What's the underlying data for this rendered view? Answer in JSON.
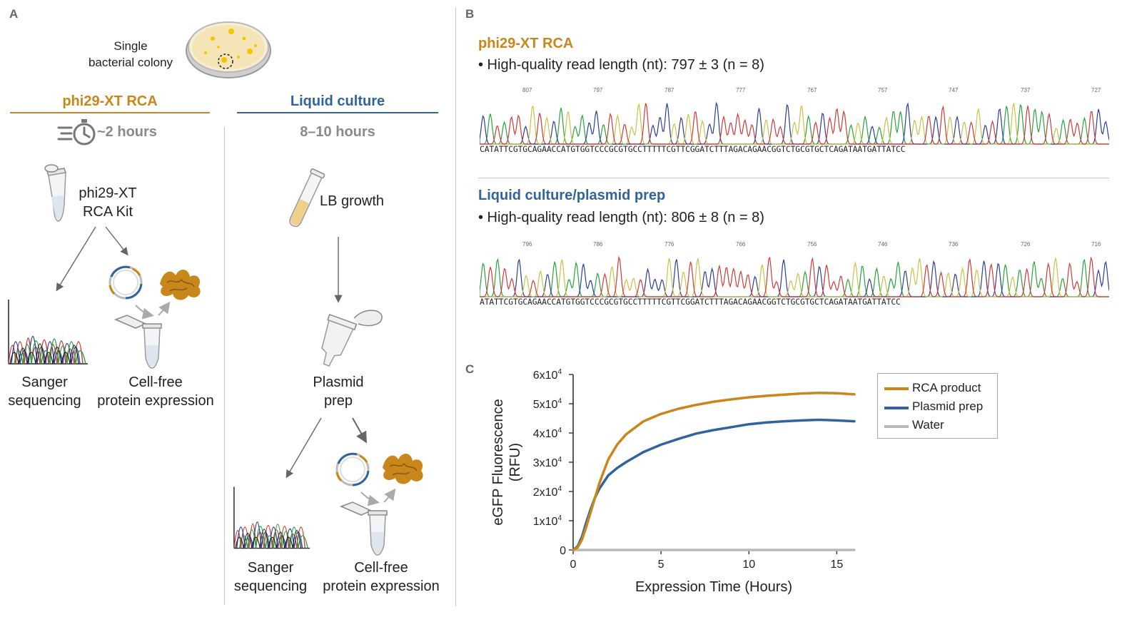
{
  "panelA": {
    "letter": "A",
    "colony_label_line1": "Single",
    "colony_label_line2": "bacterial colony",
    "left": {
      "title": "phi29-XT RCA",
      "time": "~2 hours",
      "kit_line1": "phi29-XT",
      "kit_line2": "RCA Kit",
      "seq_line1": "Sanger",
      "seq_line2": "sequencing",
      "cfpe_line1": "Cell-free",
      "cfpe_line2": "protein expression"
    },
    "right": {
      "title": "Liquid culture",
      "time": "8–10 hours",
      "growth": "LB growth",
      "prep_line1": "Plasmid",
      "prep_line2": "prep",
      "seq_line1": "Sanger",
      "seq_line2": "sequencing",
      "cfpe_line1": "Cell-free",
      "cfpe_line2": "protein expression"
    }
  },
  "panelB": {
    "letter": "B",
    "rca": {
      "title": "phi29-XT RCA",
      "stat": "• High-quality read length (nt): 797 ± 3 (n = 8)",
      "ticks": [
        "807",
        "797",
        "787",
        "777",
        "767",
        "757",
        "747",
        "737",
        "727"
      ],
      "sequence": "CATATTCGTGCAGAACCATGTGGTCCCGCGTGCCTTTTTCGTTCGGATCTTTAGACAGAACGGTCTGCGTGCTCAGATAATGATTATCC"
    },
    "plasmid": {
      "title": "Liquid culture/plasmid prep",
      "stat": "• High-quality read length (nt): 806 ± 8 (n = 8)",
      "ticks": [
        "796",
        "786",
        "776",
        "766",
        "756",
        "746",
        "736",
        "726",
        "716"
      ],
      "sequence": "ATATTCGTGCAGAACCATGTGGTCCCGCGTGCCTTTTTCGTTCGGATCTTTAGACAGAACGGTCTGCGTGCTCAGATAATGATTATCC"
    }
  },
  "panelC": {
    "letter": "C",
    "chart_data": {
      "type": "line",
      "xlabel": "Expression Time (Hours)",
      "ylabel_line1": "eGFP Fluorescence",
      "ylabel_line2": "(RFU)",
      "xlim": [
        0,
        16
      ],
      "ylim": [
        0,
        60000
      ],
      "xticks": [
        0,
        5,
        10,
        15
      ],
      "yticks": [
        0,
        10000,
        20000,
        30000,
        40000,
        50000,
        60000
      ],
      "ytick_labels": [
        "0",
        "1x10",
        "2x10",
        "3x10",
        "4x10",
        "5x10",
        "6x10"
      ],
      "ytick_exponent": "4",
      "legend_position": "top-right",
      "series": [
        {
          "name": "RCA product",
          "color": "#c9861b",
          "x": [
            0,
            0.25,
            0.5,
            0.75,
            1,
            1.25,
            1.5,
            2,
            2.5,
            3,
            4,
            5,
            6,
            7,
            8,
            9,
            10,
            11,
            12,
            13,
            14,
            15,
            16
          ],
          "y": [
            0,
            800,
            3500,
            8000,
            13000,
            18000,
            23000,
            31000,
            36000,
            39500,
            44000,
            46500,
            48300,
            49600,
            50700,
            51500,
            52200,
            52700,
            53100,
            53500,
            53700,
            53600,
            53200
          ]
        },
        {
          "name": "Plasmid prep",
          "color": "#31649e",
          "x": [
            0,
            0.25,
            0.5,
            0.75,
            1,
            1.25,
            1.5,
            2,
            2.5,
            3,
            4,
            5,
            6,
            7,
            8,
            9,
            10,
            11,
            12,
            13,
            14,
            15,
            16
          ],
          "y": [
            0,
            1200,
            4500,
            9500,
            14000,
            18000,
            21000,
            25500,
            28000,
            30000,
            33500,
            36000,
            38000,
            39800,
            41000,
            42000,
            43000,
            43600,
            44000,
            44300,
            44500,
            44300,
            44000
          ]
        },
        {
          "name": "Water",
          "color": "#b8b8b8",
          "x": [
            0,
            16
          ],
          "y": [
            0,
            0
          ]
        }
      ]
    }
  },
  "colors": {
    "orange": "#c9861b",
    "blue": "#31649e",
    "gray_text": "#8a8a8a",
    "trace_a": "#2aa33c",
    "trace_c": "#2b3e9a",
    "trace_g": "#c9c24a",
    "trace_t": "#d13a3a"
  },
  "icons": [
    "petri-dish-icon",
    "stopwatch-icon",
    "tube-icon",
    "culture-tube-icon",
    "spin-column-icon",
    "chromatogram-icon",
    "plasmid-icon",
    "protein-icon"
  ]
}
